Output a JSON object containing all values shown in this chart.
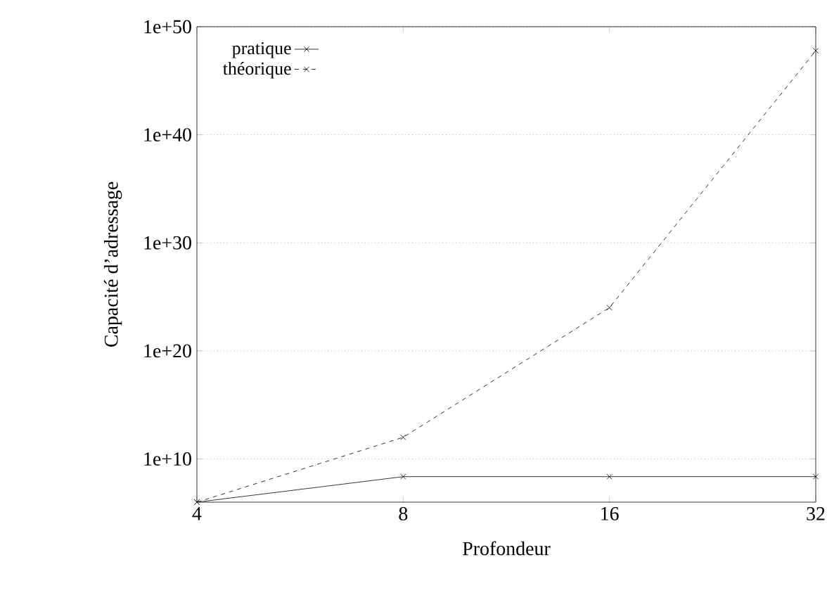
{
  "chart_data": {
    "type": "line",
    "xlabel": "Profondeur",
    "ylabel": "Capacité d’adressage",
    "x": [
      4,
      8,
      16,
      32
    ],
    "log": "xy",
    "xlim": [
      4,
      32
    ],
    "xticks": [
      4,
      8,
      16,
      32
    ],
    "ylim": [
      1000000.0,
      1e+50
    ],
    "yticks": [
      {
        "value": 10000000000.0,
        "label": "1e+10"
      },
      {
        "value": 1e+20,
        "label": "1e+20"
      },
      {
        "value": 1e+30,
        "label": "1e+30"
      },
      {
        "value": 1e+40,
        "label": "1e+40"
      },
      {
        "value": 1e+50,
        "label": "1e+50"
      }
    ],
    "grid": "y",
    "legend": "top left",
    "marker": "cross",
    "series": [
      {
        "name": "pratique",
        "color": "#000000",
        "line_style": "solid",
        "values": [
          1000000.0,
          230000000.0,
          230000000.0,
          230000000.0
        ]
      },
      {
        "name": "théorique",
        "color": "#000000",
        "line_style": "dashed",
        "values": [
          1000000.0,
          1000000000000.0,
          1e+24,
          6e+47
        ]
      }
    ]
  }
}
